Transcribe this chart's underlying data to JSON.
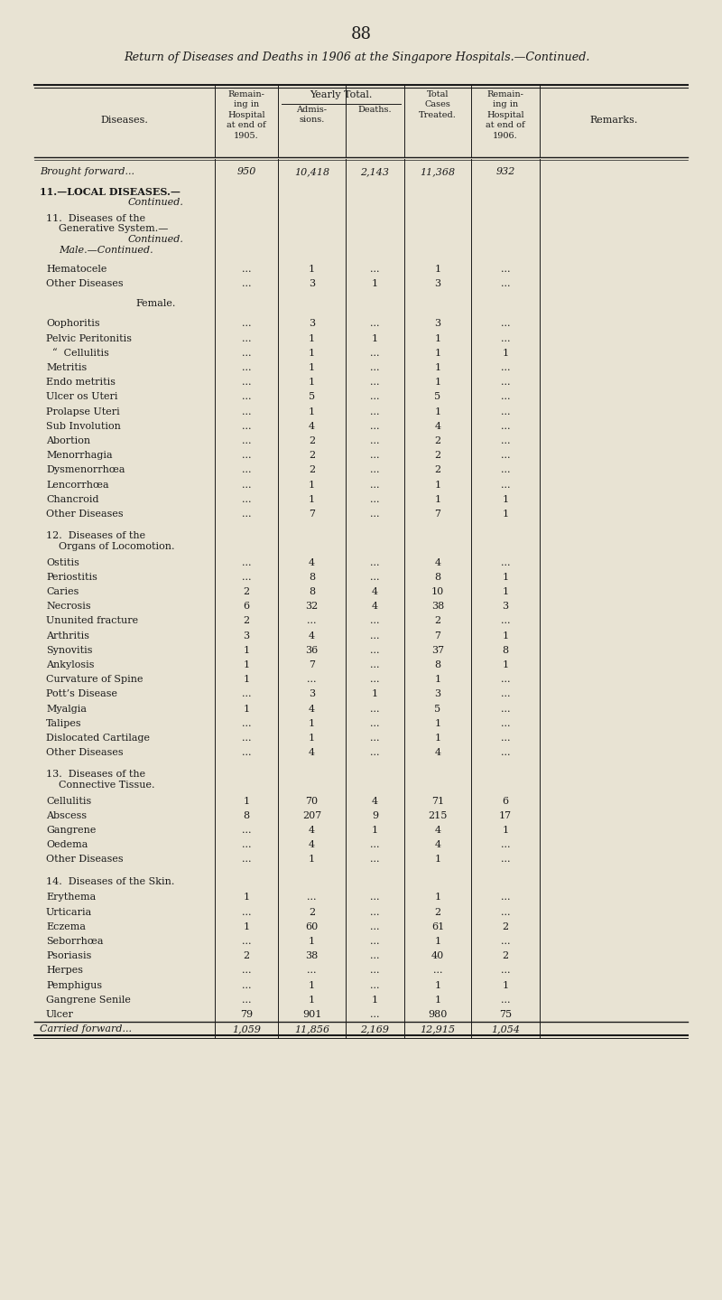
{
  "page_number": "88",
  "title": "Return of Diseases and Deaths in 1906 at the Singapore Hospitals.—Continued.",
  "bg_color": "#e8e3d3",
  "rows": [
    {
      "disease": "Brought forward...",
      "remain1905": "950",
      "admissions": "10,418",
      "deaths": "2,143",
      "total": "11,368",
      "remain1906": "932",
      "remarks": "",
      "style": "italic",
      "indent": 0,
      "spacer": 0
    },
    {
      "disease": "11.—LOCAL DISEASES.—",
      "remain1905": "",
      "admissions": "",
      "deaths": "",
      "total": "",
      "remain1906": "",
      "remarks": "",
      "style": "bold",
      "indent": 0,
      "spacer": 6
    },
    {
      "disease": "Continued.",
      "remain1905": "",
      "admissions": "",
      "deaths": "",
      "total": "",
      "remain1906": "",
      "remarks": "",
      "style": "italic_center",
      "indent": 4,
      "spacer": 0
    },
    {
      "disease": "11.  Diseases of the",
      "remain1905": "",
      "admissions": "",
      "deaths": "",
      "total": "",
      "remain1906": "",
      "remarks": "",
      "style": "smallcaps",
      "indent": 1,
      "spacer": 6
    },
    {
      "disease": "Generative System.—",
      "remain1905": "",
      "admissions": "",
      "deaths": "",
      "total": "",
      "remain1906": "",
      "remarks": "",
      "style": "smallcaps",
      "indent": 3,
      "spacer": 0
    },
    {
      "disease": "Continued.",
      "remain1905": "",
      "admissions": "",
      "deaths": "",
      "total": "",
      "remain1906": "",
      "remarks": "",
      "style": "italic_center",
      "indent": 4,
      "spacer": 0
    },
    {
      "disease": "Male.—Continued.",
      "remain1905": "",
      "admissions": "",
      "deaths": "",
      "total": "",
      "remain1906": "",
      "remarks": "",
      "style": "italic",
      "indent": 3,
      "spacer": 0
    },
    {
      "disease": "Hematocele",
      "remain1905": "...",
      "admissions": "1",
      "deaths": "...",
      "total": "1",
      "remain1906": "...",
      "remarks": "",
      "style": "normal",
      "indent": 1,
      "spacer": 5
    },
    {
      "disease": "Other Diseases",
      "remain1905": "...",
      "admissions": "3",
      "deaths": "1",
      "total": "3",
      "remain1906": "...",
      "remarks": "",
      "style": "normal",
      "indent": 1,
      "spacer": 0
    },
    {
      "disease": "Female.",
      "remain1905": "",
      "admissions": "",
      "deaths": "",
      "total": "",
      "remain1906": "",
      "remarks": "",
      "style": "smallcaps_center",
      "indent": 0,
      "spacer": 6
    },
    {
      "disease": "Oophoritis",
      "remain1905": "...",
      "admissions": "3",
      "deaths": "...",
      "total": "3",
      "remain1906": "...",
      "remarks": "",
      "style": "normal",
      "indent": 1,
      "spacer": 6
    },
    {
      "disease": "Pelvic Peritonitis",
      "remain1905": "...",
      "admissions": "1",
      "deaths": "1",
      "total": "1",
      "remain1906": "...",
      "remarks": "",
      "style": "normal",
      "indent": 1,
      "spacer": 0
    },
    {
      "disease": "  “  Cellulitis",
      "remain1905": "...",
      "admissions": "1",
      "deaths": "...",
      "total": "1",
      "remain1906": "1",
      "remarks": "",
      "style": "normal",
      "indent": 1,
      "spacer": 0
    },
    {
      "disease": "Metritis",
      "remain1905": "...",
      "admissions": "1",
      "deaths": "...",
      "total": "1",
      "remain1906": "...",
      "remarks": "",
      "style": "normal",
      "indent": 1,
      "spacer": 0
    },
    {
      "disease": "Endo metritis",
      "remain1905": "...",
      "admissions": "1",
      "deaths": "...",
      "total": "1",
      "remain1906": "...",
      "remarks": "",
      "style": "normal",
      "indent": 1,
      "spacer": 0
    },
    {
      "disease": "Ulcer os Uteri",
      "remain1905": "...",
      "admissions": "5",
      "deaths": "...",
      "total": "5",
      "remain1906": "...",
      "remarks": "",
      "style": "normal",
      "indent": 1,
      "spacer": 0
    },
    {
      "disease": "Prolapse Uteri",
      "remain1905": "...",
      "admissions": "1",
      "deaths": "...",
      "total": "1",
      "remain1906": "...",
      "remarks": "",
      "style": "normal",
      "indent": 1,
      "spacer": 0
    },
    {
      "disease": "Sub Involution",
      "remain1905": "...",
      "admissions": "4",
      "deaths": "...",
      "total": "4",
      "remain1906": "...",
      "remarks": "",
      "style": "normal",
      "indent": 1,
      "spacer": 0
    },
    {
      "disease": "Abortion",
      "remain1905": "...",
      "admissions": "2",
      "deaths": "...",
      "total": "2",
      "remain1906": "...",
      "remarks": "",
      "style": "normal",
      "indent": 1,
      "spacer": 0
    },
    {
      "disease": "Menorrhagia",
      "remain1905": "...",
      "admissions": "2",
      "deaths": "...",
      "total": "2",
      "remain1906": "...",
      "remarks": "",
      "style": "normal",
      "indent": 1,
      "spacer": 0
    },
    {
      "disease": "Dysmenorrhœa",
      "remain1905": "...",
      "admissions": "2",
      "deaths": "...",
      "total": "2",
      "remain1906": "...",
      "remarks": "",
      "style": "normal",
      "indent": 1,
      "spacer": 0
    },
    {
      "disease": "Lencorrhœa",
      "remain1905": "...",
      "admissions": "1",
      "deaths": "...",
      "total": "1",
      "remain1906": "...",
      "remarks": "",
      "style": "normal",
      "indent": 1,
      "spacer": 0
    },
    {
      "disease": "Chancroid",
      "remain1905": "...",
      "admissions": "1",
      "deaths": "...",
      "total": "1",
      "remain1906": "1",
      "remarks": "",
      "style": "normal",
      "indent": 1,
      "spacer": 0
    },
    {
      "disease": "Other Diseases",
      "remain1905": "...",
      "admissions": "7",
      "deaths": "...",
      "total": "7",
      "remain1906": "1",
      "remarks": "",
      "style": "normal",
      "indent": 1,
      "spacer": 0
    },
    {
      "disease": "12.  Diseases of the",
      "remain1905": "",
      "admissions": "",
      "deaths": "",
      "total": "",
      "remain1906": "",
      "remarks": "",
      "style": "smallcaps",
      "indent": 1,
      "spacer": 8
    },
    {
      "disease": "Organs of Locomotion.",
      "remain1905": "",
      "admissions": "",
      "deaths": "",
      "total": "",
      "remain1906": "",
      "remarks": "",
      "style": "smallcaps",
      "indent": 3,
      "spacer": 0
    },
    {
      "disease": "Ostitis",
      "remain1905": "...",
      "admissions": "4",
      "deaths": "...",
      "total": "4",
      "remain1906": "...",
      "remarks": "",
      "style": "normal",
      "indent": 1,
      "spacer": 6
    },
    {
      "disease": "Periostitis",
      "remain1905": "...",
      "admissions": "8",
      "deaths": "...",
      "total": "8",
      "remain1906": "1",
      "remarks": "",
      "style": "normal",
      "indent": 1,
      "spacer": 0
    },
    {
      "disease": "Caries",
      "remain1905": "2",
      "admissions": "8",
      "deaths": "4",
      "total": "10",
      "remain1906": "1",
      "remarks": "",
      "style": "normal",
      "indent": 1,
      "spacer": 0
    },
    {
      "disease": "Necrosis",
      "remain1905": "6",
      "admissions": "32",
      "deaths": "4",
      "total": "38",
      "remain1906": "3",
      "remarks": "",
      "style": "normal",
      "indent": 1,
      "spacer": 0
    },
    {
      "disease": "Ununited fracture",
      "remain1905": "2",
      "admissions": "...",
      "deaths": "...",
      "total": "2",
      "remain1906": "...",
      "remarks": "",
      "style": "normal",
      "indent": 1,
      "spacer": 0
    },
    {
      "disease": "Arthritis",
      "remain1905": "3",
      "admissions": "4",
      "deaths": "...",
      "total": "7",
      "remain1906": "1",
      "remarks": "",
      "style": "normal",
      "indent": 1,
      "spacer": 0
    },
    {
      "disease": "Synovitis",
      "remain1905": "1",
      "admissions": "36",
      "deaths": "...",
      "total": "37",
      "remain1906": "8",
      "remarks": "",
      "style": "normal",
      "indent": 1,
      "spacer": 0
    },
    {
      "disease": "Ankylosis",
      "remain1905": "1",
      "admissions": "7",
      "deaths": "...",
      "total": "8",
      "remain1906": "1",
      "remarks": "",
      "style": "normal",
      "indent": 1,
      "spacer": 0
    },
    {
      "disease": "Curvature of Spine",
      "remain1905": "1",
      "admissions": "...",
      "deaths": "...",
      "total": "1",
      "remain1906": "...",
      "remarks": "",
      "style": "normal",
      "indent": 1,
      "spacer": 0
    },
    {
      "disease": "Pott’s Disease",
      "remain1905": "...",
      "admissions": "3",
      "deaths": "1",
      "total": "3",
      "remain1906": "...",
      "remarks": "",
      "style": "normal",
      "indent": 1,
      "spacer": 0
    },
    {
      "disease": "Myalgia",
      "remain1905": "1",
      "admissions": "4",
      "deaths": "...",
      "total": "5",
      "remain1906": "...",
      "remarks": "",
      "style": "normal",
      "indent": 1,
      "spacer": 0
    },
    {
      "disease": "Talipes",
      "remain1905": "...",
      "admissions": "1",
      "deaths": "...",
      "total": "1",
      "remain1906": "...",
      "remarks": "",
      "style": "normal",
      "indent": 1,
      "spacer": 0
    },
    {
      "disease": "Dislocated Cartilage",
      "remain1905": "...",
      "admissions": "1",
      "deaths": "...",
      "total": "1",
      "remain1906": "...",
      "remarks": "",
      "style": "normal",
      "indent": 1,
      "spacer": 0
    },
    {
      "disease": "Other Diseases",
      "remain1905": "...",
      "admissions": "4",
      "deaths": "...",
      "total": "4",
      "remain1906": "...",
      "remarks": "",
      "style": "normal",
      "indent": 1,
      "spacer": 0
    },
    {
      "disease": "13.  Diseases of the",
      "remain1905": "",
      "admissions": "",
      "deaths": "",
      "total": "",
      "remain1906": "",
      "remarks": "",
      "style": "smallcaps",
      "indent": 1,
      "spacer": 8
    },
    {
      "disease": "Connective Tissue.",
      "remain1905": "",
      "admissions": "",
      "deaths": "",
      "total": "",
      "remain1906": "",
      "remarks": "",
      "style": "smallcaps",
      "indent": 3,
      "spacer": 0
    },
    {
      "disease": "Cellulitis",
      "remain1905": "1",
      "admissions": "70",
      "deaths": "4",
      "total": "71",
      "remain1906": "6",
      "remarks": "",
      "style": "normal",
      "indent": 1,
      "spacer": 6
    },
    {
      "disease": "Abscess",
      "remain1905": "8",
      "admissions": "207",
      "deaths": "9",
      "total": "215",
      "remain1906": "17",
      "remarks": "",
      "style": "normal",
      "indent": 1,
      "spacer": 0
    },
    {
      "disease": "Gangrene",
      "remain1905": "...",
      "admissions": "4",
      "deaths": "1",
      "total": "4",
      "remain1906": "1",
      "remarks": "",
      "style": "normal",
      "indent": 1,
      "spacer": 0
    },
    {
      "disease": "Oedema",
      "remain1905": "...",
      "admissions": "4",
      "deaths": "...",
      "total": "4",
      "remain1906": "...",
      "remarks": "",
      "style": "normal",
      "indent": 1,
      "spacer": 0
    },
    {
      "disease": "Other Diseases",
      "remain1905": "...",
      "admissions": "1",
      "deaths": "...",
      "total": "1",
      "remain1906": "...",
      "remarks": "",
      "style": "normal",
      "indent": 1,
      "spacer": 0
    },
    {
      "disease": "14.  Diseases of the Skin.",
      "remain1905": "",
      "admissions": "",
      "deaths": "",
      "total": "",
      "remain1906": "",
      "remarks": "",
      "style": "smallcaps",
      "indent": 1,
      "spacer": 8
    },
    {
      "disease": "Erythema",
      "remain1905": "1",
      "admissions": "...",
      "deaths": "...",
      "total": "1",
      "remain1906": "...",
      "remarks": "",
      "style": "normal",
      "indent": 1,
      "spacer": 6
    },
    {
      "disease": "Urticaria",
      "remain1905": "...",
      "admissions": "2",
      "deaths": "...",
      "total": "2",
      "remain1906": "...",
      "remarks": "",
      "style": "normal",
      "indent": 1,
      "spacer": 0
    },
    {
      "disease": "Eczema",
      "remain1905": "1",
      "admissions": "60",
      "deaths": "...",
      "total": "61",
      "remain1906": "2",
      "remarks": "",
      "style": "normal",
      "indent": 1,
      "spacer": 0
    },
    {
      "disease": "Seborrhœa",
      "remain1905": "...",
      "admissions": "1",
      "deaths": "...",
      "total": "1",
      "remain1906": "...",
      "remarks": "",
      "style": "normal",
      "indent": 1,
      "spacer": 0
    },
    {
      "disease": "Psoriasis",
      "remain1905": "2",
      "admissions": "38",
      "deaths": "...",
      "total": "40",
      "remain1906": "2",
      "remarks": "",
      "style": "normal",
      "indent": 1,
      "spacer": 0
    },
    {
      "disease": "Herpes",
      "remain1905": "...",
      "admissions": "...",
      "deaths": "...",
      "total": "...",
      "remain1906": "...",
      "remarks": "",
      "style": "normal",
      "indent": 1,
      "spacer": 0
    },
    {
      "disease": "Pemphigus",
      "remain1905": "...",
      "admissions": "1",
      "deaths": "...",
      "total": "1",
      "remain1906": "1",
      "remarks": "",
      "style": "normal",
      "indent": 1,
      "spacer": 0
    },
    {
      "disease": "Gangrene Senile",
      "remain1905": "...",
      "admissions": "1",
      "deaths": "1",
      "total": "1",
      "remain1906": "...",
      "remarks": "",
      "style": "normal",
      "indent": 1,
      "spacer": 0
    },
    {
      "disease": "Ulcer",
      "remain1905": "79",
      "admissions": "901",
      "deaths": "...",
      "total": "980",
      "remain1906": "75",
      "remarks": "",
      "style": "normal",
      "indent": 1,
      "spacer": 0
    },
    {
      "disease": "Carried forward...",
      "remain1905": "1,059",
      "admissions": "11,856",
      "deaths": "2,169",
      "total": "12,915",
      "remain1906": "1,054",
      "remarks": "",
      "style": "italic",
      "indent": 0,
      "spacer": 0
    }
  ]
}
